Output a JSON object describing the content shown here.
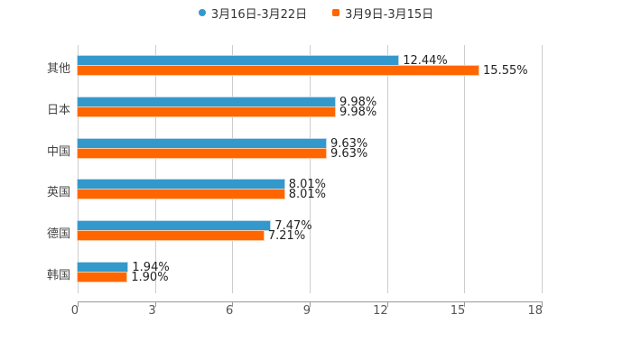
{
  "legend": [
    {
      "label": "3月16日-3月22日",
      "color": "#3399cc",
      "shape": "circle"
    },
    {
      "label": "3月9日-3月15日",
      "color": "#ff6600",
      "shape": "square"
    }
  ],
  "axis": {
    "ticks": [
      "0",
      "3",
      "6",
      "9",
      "12",
      "15",
      "18"
    ]
  },
  "categories": [
    {
      "label": "其他",
      "v1_label": "12.44%",
      "v2_label": "15.55%"
    },
    {
      "label": "日本",
      "v1_label": "9.98%",
      "v2_label": "9.98%"
    },
    {
      "label": "中国",
      "v1_label": "9.63%",
      "v2_label": "9.63%"
    },
    {
      "label": "英国",
      "v1_label": "8.01%",
      "v2_label": "8.01%"
    },
    {
      "label": "德国",
      "v1_label": "7.47%",
      "v2_label": "7.21%"
    },
    {
      "label": "韩国",
      "v1_label": "1.94%",
      "v2_label": "1.90%"
    }
  ],
  "chart_data": {
    "type": "bar",
    "orientation": "horizontal",
    "title": "",
    "xlabel": "",
    "ylabel": "",
    "xlim": [
      0,
      18
    ],
    "x_ticks": [
      0,
      3,
      6,
      9,
      12,
      15,
      18
    ],
    "grid": true,
    "legend_position": "top",
    "categories": [
      "其他",
      "日本",
      "中国",
      "英国",
      "德国",
      "韩国"
    ],
    "series": [
      {
        "name": "3月16日-3月22日",
        "color": "#3399cc",
        "values": [
          12.44,
          9.98,
          9.63,
          8.01,
          7.47,
          1.94
        ]
      },
      {
        "name": "3月9日-3月15日",
        "color": "#ff6600",
        "values": [
          15.55,
          9.98,
          9.63,
          8.01,
          7.21,
          1.9
        ]
      }
    ],
    "value_suffix": "%"
  }
}
